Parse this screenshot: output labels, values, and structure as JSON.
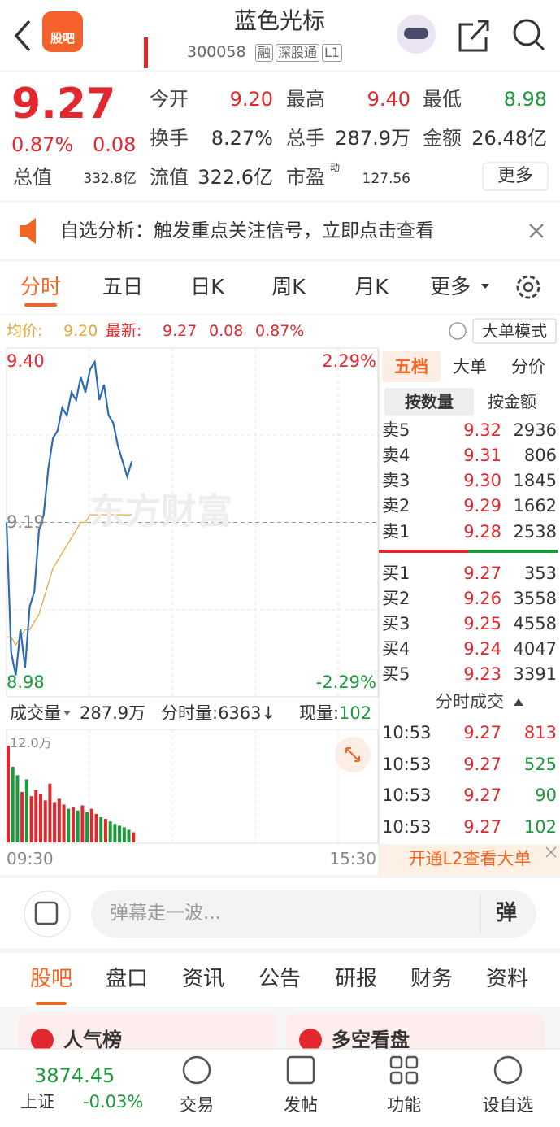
{
  "header": {
    "logo": "股吧",
    "title": "蓝色光标",
    "code": "300058",
    "tags": [
      "融",
      "深股通",
      "L1"
    ]
  },
  "quote": {
    "price": "9.27",
    "change_pct": "0.87%",
    "change": "0.08",
    "more": "更多",
    "fields": [
      {
        "label": "今开",
        "value": "9.20"
      },
      {
        "label": "最高",
        "value": "9.40"
      },
      {
        "label": "最低",
        "value": "8.98"
      },
      {
        "label": "换手",
        "value": "8.27%"
      },
      {
        "label": "总手",
        "value": "287.9万"
      },
      {
        "label": "金额",
        "value": "26.48亿"
      },
      {
        "label": "总值",
        "value": "332.8亿"
      },
      {
        "label": "流值",
        "value": "322.6亿"
      },
      {
        "label": "市盈",
        "sup": "动",
        "value": "127.56"
      }
    ]
  },
  "notice": "自选分析：触发重点关注信号，立即点击查看",
  "tabs": [
    "分时",
    "五日",
    "日K",
    "周K",
    "月K",
    "更多"
  ],
  "summary": {
    "avg_label": "均价:",
    "avg": "9.20",
    "latest_label": "最新:",
    "latest": "9.27",
    "change": "0.08",
    "pct": "0.87%",
    "mode": "大单模式"
  },
  "chart_data": {
    "type": "line",
    "watermark": "东方财富",
    "x": [
      0,
      3,
      6,
      9,
      12,
      15,
      18,
      21,
      24,
      27,
      30,
      33,
      36,
      39,
      42,
      45,
      48,
      51,
      54,
      57,
      60,
      63,
      66,
      69,
      72,
      75,
      78,
      81
    ],
    "xlim": [
      0,
      240
    ],
    "xticks": [
      {
        "value": 0,
        "label": "09:30"
      },
      {
        "value": 240,
        "label": "15:30"
      }
    ],
    "ylim": [
      8.98,
      9.4
    ],
    "yticks": [
      {
        "value": 9.4,
        "label": "9.40"
      },
      {
        "value": 9.19,
        "label": "9.19"
      },
      {
        "value": 8.98,
        "label": "8.98"
      }
    ],
    "y2lim": [
      -2.29,
      2.29
    ],
    "y2ticks": [
      {
        "value": 2.29,
        "label": "2.29%"
      },
      {
        "value": -2.29,
        "label": "-2.29%"
      }
    ],
    "series": [
      {
        "name": "价格",
        "color": "#2b6cb5",
        "values": [
          9.19,
          9.02,
          8.99,
          9.05,
          9.0,
          9.08,
          9.1,
          9.18,
          9.2,
          9.26,
          9.3,
          9.31,
          9.34,
          9.33,
          9.36,
          9.35,
          9.38,
          9.36,
          9.39,
          9.4,
          9.35,
          9.37,
          9.33,
          9.32,
          9.29,
          9.27,
          9.25,
          9.27
        ]
      },
      {
        "name": "均价",
        "color": "#e8a93b",
        "values": [
          9.04,
          9.04,
          9.03,
          9.04,
          9.05,
          9.05,
          9.06,
          9.07,
          9.09,
          9.11,
          9.13,
          9.14,
          9.15,
          9.16,
          9.17,
          9.18,
          9.19,
          9.19,
          9.2,
          9.2,
          9.2,
          9.2,
          9.2,
          9.2,
          9.2,
          9.2,
          9.2,
          9.2
        ]
      }
    ],
    "volume": {
      "label": "成交量",
      "total": "287.9万",
      "tick_volume": "分时量:6363↓",
      "now_label": "现量:",
      "now": "102",
      "ylim": [
        0,
        120000
      ],
      "yticks": [
        {
          "value": 120000,
          "label": "12.0万"
        }
      ],
      "values": [
        115000,
        90000,
        80000,
        60000,
        75000,
        55000,
        62000,
        58000,
        50000,
        70000,
        48000,
        52000,
        45000,
        40000,
        42000,
        38000,
        44000,
        36000,
        40000,
        34000,
        30000,
        28000,
        25000,
        22000,
        20000,
        18000,
        15000,
        12000
      ]
    }
  },
  "orderbook": {
    "tabs": [
      "五档",
      "大单",
      "分价"
    ],
    "subtabs": [
      "按数量",
      "按金额"
    ],
    "asks": [
      [
        "卖5",
        "9.32",
        "2936"
      ],
      [
        "卖4",
        "9.31",
        "806"
      ],
      [
        "卖3",
        "9.30",
        "1845"
      ],
      [
        "卖2",
        "9.29",
        "1662"
      ],
      [
        "卖1",
        "9.28",
        "2538"
      ]
    ],
    "bids": [
      [
        "买1",
        "9.27",
        "353"
      ],
      [
        "买2",
        "9.26",
        "3558"
      ],
      [
        "买3",
        "9.25",
        "4558"
      ],
      [
        "买4",
        "9.24",
        "4047"
      ],
      [
        "买5",
        "9.23",
        "3391"
      ]
    ],
    "trades_title": "分时成交",
    "trades": [
      [
        "10:53",
        "9.27",
        "813"
      ],
      [
        "10:53",
        "9.27",
        "525"
      ],
      [
        "10:53",
        "9.27",
        "90"
      ],
      [
        "10:53",
        "9.27",
        "102"
      ]
    ],
    "banner": "开通L2查看大单"
  },
  "comment": {
    "placeholder": "弹幕走一波...",
    "button": "弹"
  },
  "bottom_tabs": [
    "股吧",
    "盘口",
    "资讯",
    "公告",
    "研报",
    "财务",
    "资料"
  ],
  "cards": [
    "人气榜",
    "多空看盘"
  ],
  "footer": {
    "index": "3874.45",
    "index_name": "上证",
    "index_change": "-0.03%",
    "items": [
      "交易",
      "发帖",
      "功能",
      "设自选"
    ]
  }
}
